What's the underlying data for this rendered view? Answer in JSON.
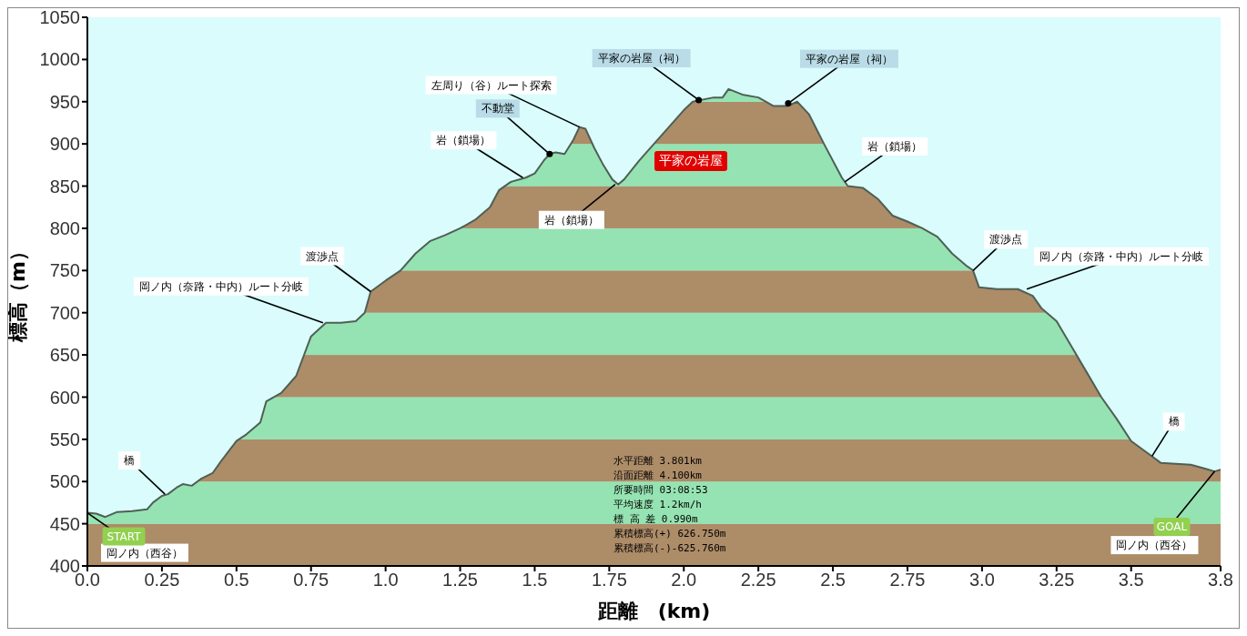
{
  "chart_data": {
    "type": "area",
    "xlabel": "距離　(km)",
    "ylabel": "標高（m）",
    "color": "#4f5f55",
    "x": [
      0,
      0.03,
      0.06,
      0.1,
      0.15,
      0.2,
      0.22,
      0.25,
      0.27,
      0.3,
      0.32,
      0.35,
      0.38,
      0.42,
      0.45,
      0.5,
      0.53,
      0.58,
      0.6,
      0.65,
      0.7,
      0.75,
      0.8,
      0.85,
      0.9,
      0.93,
      0.95,
      1.0,
      1.05,
      1.1,
      1.15,
      1.2,
      1.25,
      1.3,
      1.35,
      1.38,
      1.42,
      1.47,
      1.5,
      1.53,
      1.55,
      1.57,
      1.6,
      1.63,
      1.65,
      1.67,
      1.7,
      1.73,
      1.76,
      1.78,
      1.8,
      1.85,
      1.9,
      1.95,
      2.0,
      2.03,
      2.1,
      2.13,
      2.15,
      2.2,
      2.25,
      2.3,
      2.35,
      2.38,
      2.42,
      2.47,
      2.53,
      2.55,
      2.6,
      2.65,
      2.7,
      2.75,
      2.8,
      2.85,
      2.9,
      2.95,
      2.97,
      2.99,
      3.05,
      3.12,
      3.17,
      3.2,
      3.25,
      3.3,
      3.35,
      3.4,
      3.45,
      3.5,
      3.55,
      3.6,
      3.65,
      3.7,
      3.75,
      3.78,
      3.8
    ],
    "values": [
      463,
      462,
      458,
      464,
      465,
      467,
      475,
      483,
      485,
      493,
      497,
      495,
      503,
      510,
      525,
      548,
      555,
      570,
      595,
      605,
      625,
      672,
      688,
      688,
      690,
      700,
      725,
      738,
      750,
      770,
      785,
      792,
      800,
      810,
      825,
      845,
      855,
      860,
      865,
      880,
      888,
      890,
      888,
      905,
      920,
      918,
      895,
      875,
      858,
      852,
      858,
      880,
      900,
      920,
      940,
      950,
      955,
      955,
      965,
      958,
      955,
      945,
      945,
      950,
      935,
      900,
      860,
      850,
      848,
      835,
      815,
      808,
      800,
      790,
      770,
      755,
      750,
      730,
      728,
      728,
      720,
      705,
      690,
      660,
      630,
      600,
      575,
      548,
      535,
      522,
      521,
      520,
      515,
      512,
      514
    ],
    "xlim": [
      0,
      3.8
    ],
    "xticks": [
      {
        "value": 0,
        "label": "0.0"
      },
      0.25,
      0.5,
      0.75,
      {
        "value": 1,
        "label": "1.0"
      },
      1.25,
      1.5,
      1.75,
      {
        "value": 2,
        "label": "2.0"
      },
      2.25,
      2.5,
      2.75,
      {
        "value": 3,
        "label": "3.0"
      },
      3.25,
      3.5,
      3.8
    ],
    "ylim": [
      400,
      1050
    ],
    "yticks": [
      400,
      450,
      500,
      550,
      600,
      650,
      700,
      750,
      800,
      850,
      900,
      950,
      1000,
      1050
    ],
    "bands": [
      {
        "axis": "y",
        "from": 400,
        "to": 450,
        "color": "#b8916a"
      },
      {
        "axis": "y",
        "from": 450,
        "to": 500,
        "color": "#9ef2bd"
      },
      {
        "axis": "y",
        "from": 500,
        "to": 550,
        "color": "#b8916a"
      },
      {
        "axis": "y",
        "from": 550,
        "to": 600,
        "color": "#9ef2bd"
      },
      {
        "axis": "y",
        "from": 600,
        "to": 650,
        "color": "#b8916a"
      },
      {
        "axis": "y",
        "from": 650,
        "to": 700,
        "color": "#9ef2bd"
      },
      {
        "axis": "y",
        "from": 700,
        "to": 750,
        "color": "#b8916a"
      },
      {
        "axis": "y",
        "from": 750,
        "to": 800,
        "color": "#9ef2bd"
      },
      {
        "axis": "y",
        "from": 800,
        "to": 850,
        "color": "#b8916a"
      },
      {
        "axis": "y",
        "from": 850,
        "to": 900,
        "color": "#9ef2bd"
      },
      {
        "axis": "y",
        "from": 900,
        "to": 950,
        "color": "#b8916a"
      },
      {
        "axis": "y",
        "from": 950,
        "to": 1050,
        "color": "#9ef2bd"
      }
    ],
    "annotations": [
      {
        "text": "岡ノ内（西谷）",
        "x": 0,
        "y": 463
      },
      {
        "text": "START",
        "x": 0,
        "y": 463
      },
      {
        "text": "橋",
        "x": 0.26,
        "y": 485
      },
      {
        "text": "岡ノ内（奈路・中内）ルート分岐",
        "x": 0.79,
        "y": 688
      },
      {
        "text": "渡渉点",
        "x": 0.95,
        "y": 725
      },
      {
        "text": "岩（鎖場）",
        "x": 1.46,
        "y": 860
      },
      {
        "text": "不動堂",
        "x": 1.55,
        "y": 888
      },
      {
        "text": "左周り（谷）ルート探索",
        "x": 1.65,
        "y": 920
      },
      {
        "text": "岩（鎖場）",
        "x": 1.77,
        "y": 852
      },
      {
        "text": "平家の岩屋（祠）",
        "x": 2.05,
        "y": 952
      },
      {
        "text": "平家の岩屋（祠）",
        "x": 2.35,
        "y": 948
      },
      {
        "text": "岩（鎖場）",
        "x": 2.54,
        "y": 855
      },
      {
        "text": "渡渉点",
        "x": 2.97,
        "y": 750
      },
      {
        "text": "岡ノ内（奈路・中内）ルート分岐",
        "x": 3.15,
        "y": 728
      },
      {
        "text": "橋",
        "x": 3.57,
        "y": 530
      },
      {
        "text": "岡ノ内（西谷）",
        "x": 3.78,
        "y": 512
      },
      {
        "text": "GOAL",
        "x": 3.78,
        "y": 512
      },
      "平家の岩屋",
      "水平距離 3.801km",
      "沿面距離 4.100km",
      "所要時間 03:08:53",
      "平均速度 1.2km/h",
      "標 高 差 0.990m",
      "累積標高(+) 626.750m",
      "累積標高(-)-625.760m"
    ]
  }
}
